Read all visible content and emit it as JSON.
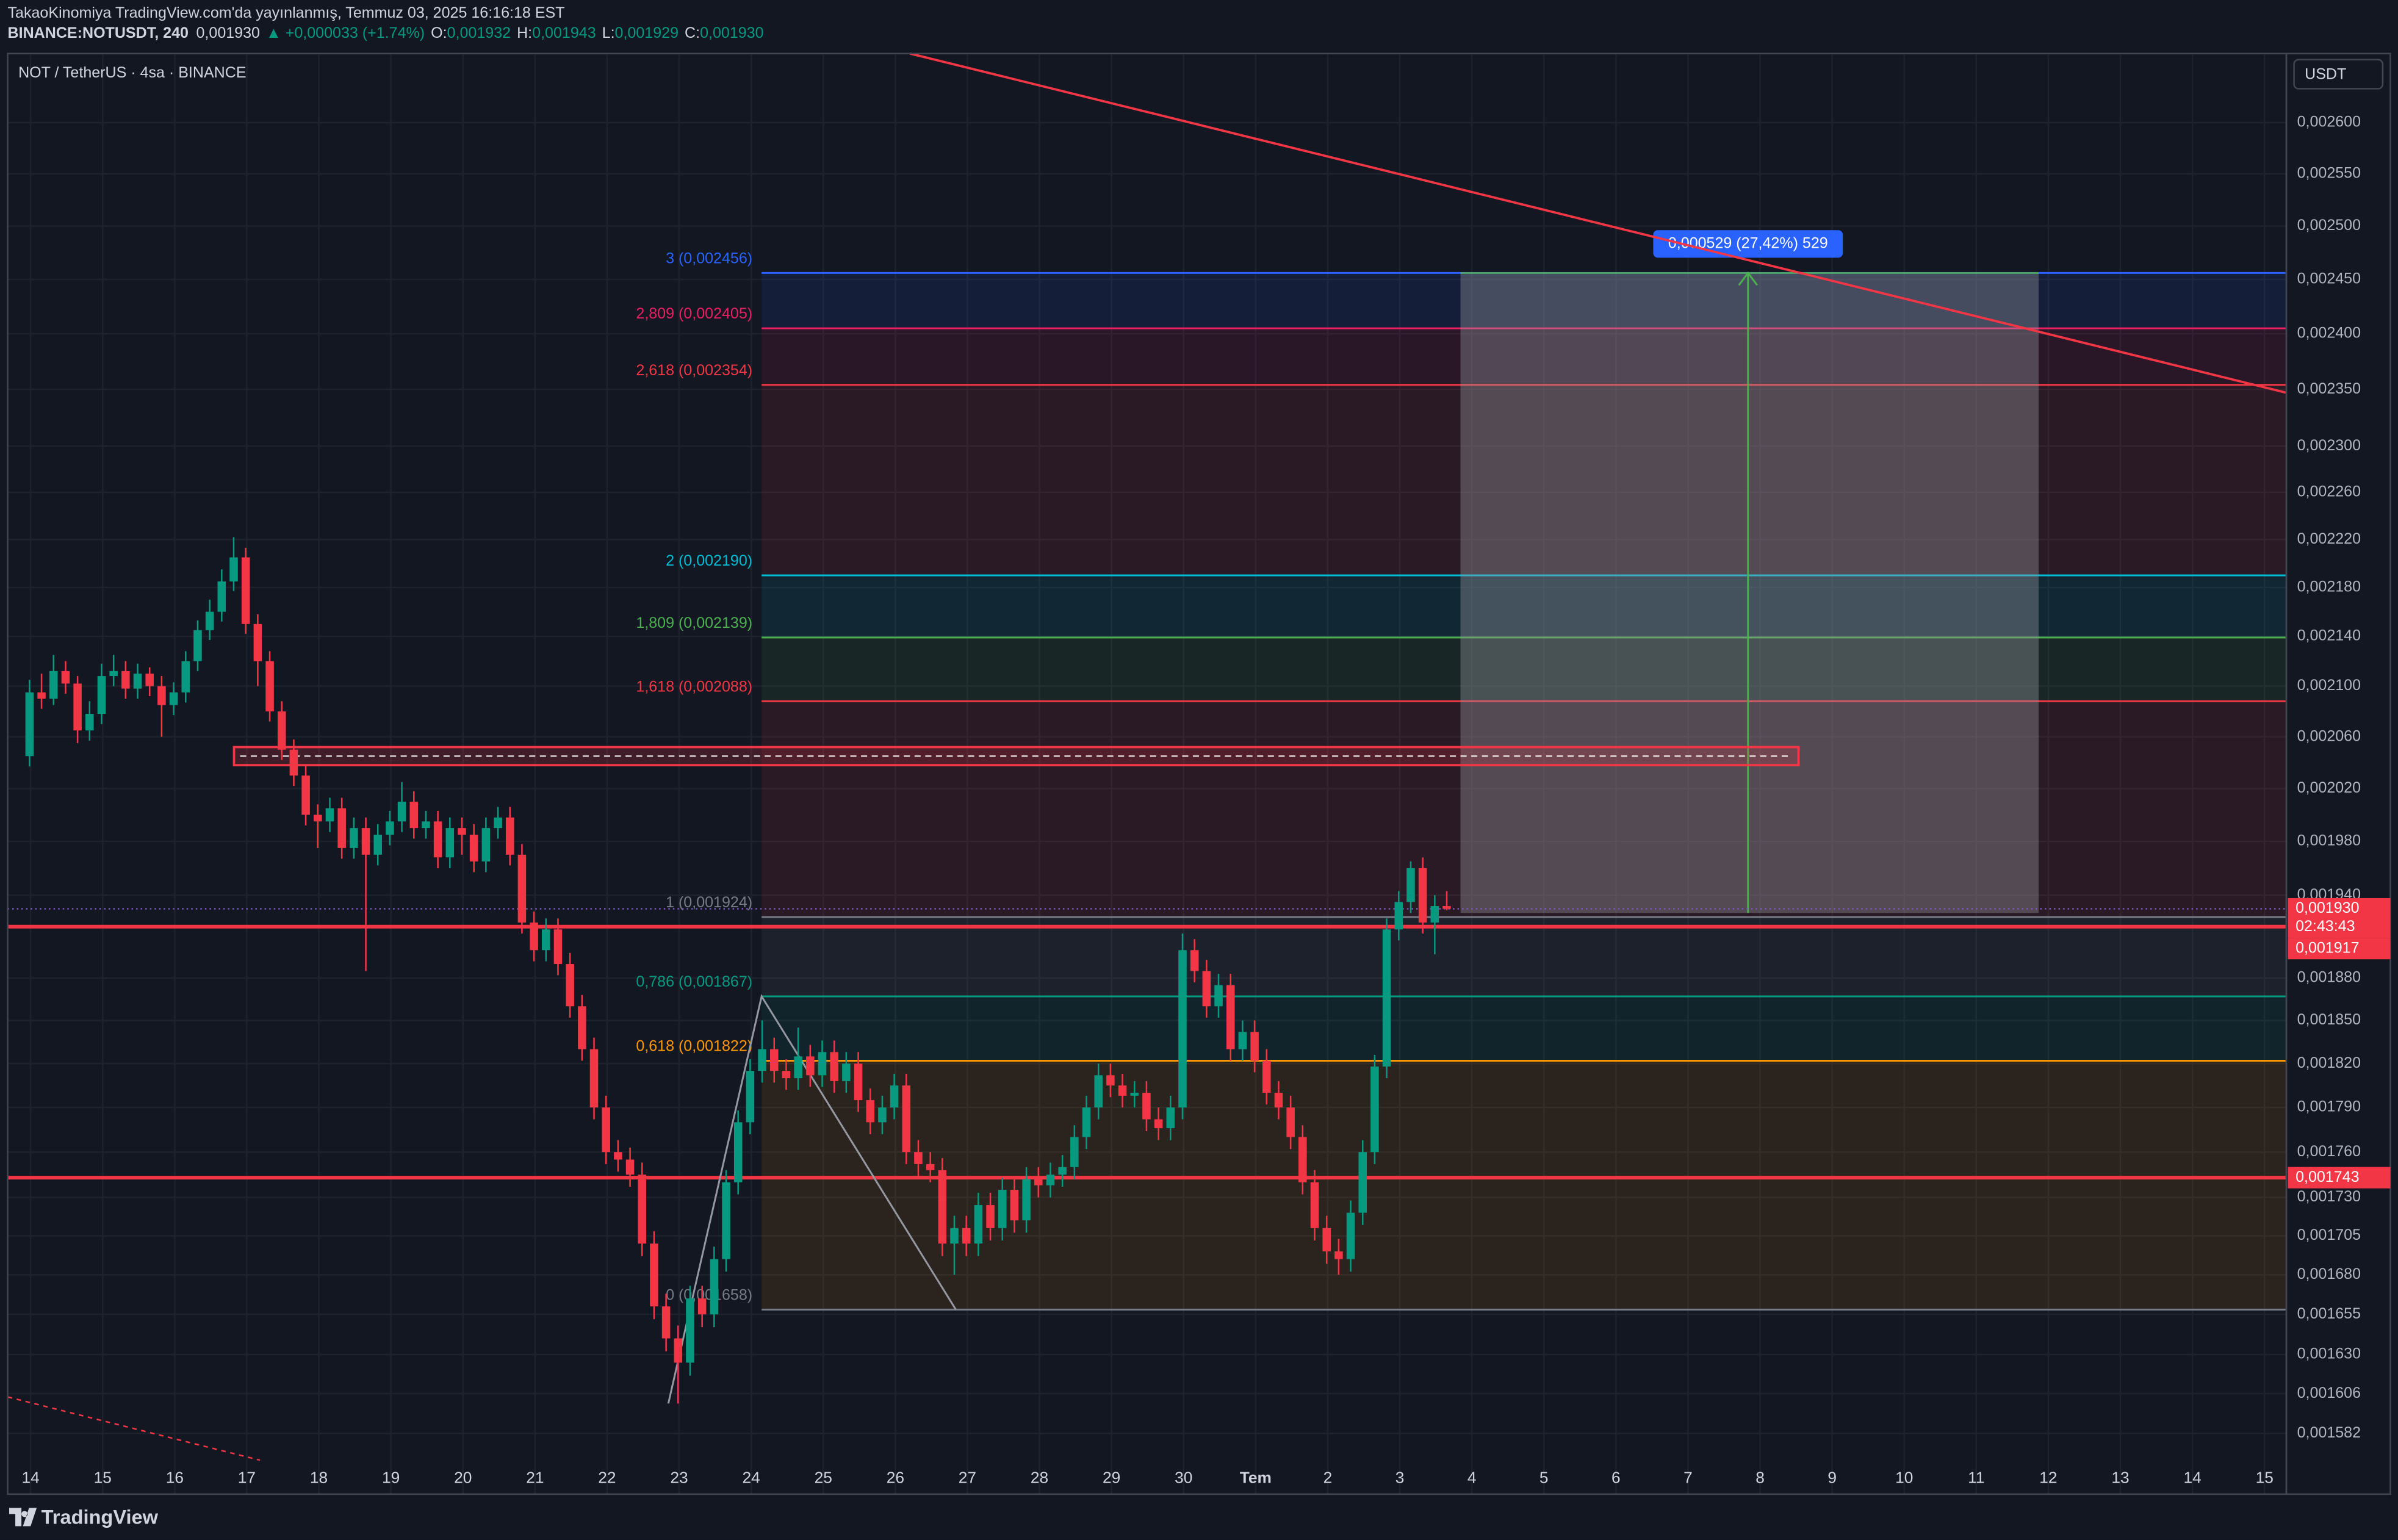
{
  "header": {
    "author_line": "TakaoKinomiya TradingView.com'da yayınlanmış, Temmuz 03, 2025 16:16:18 EST",
    "symbol": "BINANCE:NOTUSDT, 240",
    "last": "0,001930",
    "change": "▲ +0,000033 (+1.74%)",
    "ohlc": [
      {
        "key": "O:",
        "value": "0,001932"
      },
      {
        "key": "H:",
        "value": "0,001943"
      },
      {
        "key": "L:",
        "value": "0,001929"
      },
      {
        "key": "C:",
        "value": "0,001930"
      }
    ]
  },
  "legend": "NOT / TetherUS · 4sa · BINANCE",
  "currency": "USDT",
  "brand": "TradingView",
  "chart_data": {
    "type": "candlestick",
    "log_scale": true,
    "grid": true,
    "up_color": "#089981",
    "down_color": "#f23645",
    "ylim": [
      0.001546,
      0.002669
    ],
    "yticks": [
      {
        "value": 0.0026,
        "label": "0,002600"
      },
      {
        "value": 0.00255,
        "label": "0,002550"
      },
      {
        "value": 0.0025,
        "label": "0,002500"
      },
      {
        "value": 0.00245,
        "label": "0,002450"
      },
      {
        "value": 0.0024,
        "label": "0,002400"
      },
      {
        "value": 0.00235,
        "label": "0,002350"
      },
      {
        "value": 0.0023,
        "label": "0,002300"
      },
      {
        "value": 0.00226,
        "label": "0,002260"
      },
      {
        "value": 0.00222,
        "label": "0,002220"
      },
      {
        "value": 0.00218,
        "label": "0,002180"
      },
      {
        "value": 0.00214,
        "label": "0,002140"
      },
      {
        "value": 0.0021,
        "label": "0,002100"
      },
      {
        "value": 0.00206,
        "label": "0,002060"
      },
      {
        "value": 0.00202,
        "label": "0,002020"
      },
      {
        "value": 0.00198,
        "label": "0,001980"
      },
      {
        "value": 0.00194,
        "label": "0,001940"
      },
      {
        "value": 0.00188,
        "label": "0,001880"
      },
      {
        "value": 0.00185,
        "label": "0,001850"
      },
      {
        "value": 0.00182,
        "label": "0,001820"
      },
      {
        "value": 0.00179,
        "label": "0,001790"
      },
      {
        "value": 0.00176,
        "label": "0,001760"
      },
      {
        "value": 0.00173,
        "label": "0,001730"
      },
      {
        "value": 0.001705,
        "label": "0,001705"
      },
      {
        "value": 0.00168,
        "label": "0,001680"
      },
      {
        "value": 0.001655,
        "label": "0,001655"
      },
      {
        "value": 0.00163,
        "label": "0,001630"
      },
      {
        "value": 0.001606,
        "label": "0,001606"
      },
      {
        "value": 0.001582,
        "label": "0,001582"
      }
    ],
    "x_labels": [
      "14",
      "15",
      "16",
      "17",
      "18",
      "19",
      "20",
      "21",
      "22",
      "23",
      "24",
      "25",
      "26",
      "27",
      "28",
      "29",
      "30",
      "Tem",
      "2",
      "3",
      "4",
      "5",
      "6",
      "7",
      "8",
      "9",
      "10",
      "11",
      "12",
      "13",
      "14",
      "15"
    ],
    "candles": [
      [
        0.002045,
        0.002105,
        0.002037,
        0.002095
      ],
      [
        0.002095,
        0.00211,
        0.002082,
        0.00209
      ],
      [
        0.00209,
        0.002125,
        0.002085,
        0.002112
      ],
      [
        0.002112,
        0.00212,
        0.002094,
        0.002102
      ],
      [
        0.002102,
        0.002108,
        0.002055,
        0.002065
      ],
      [
        0.002065,
        0.002088,
        0.002057,
        0.002078
      ],
      [
        0.002078,
        0.002118,
        0.00207,
        0.002108
      ],
      [
        0.002108,
        0.002125,
        0.0021,
        0.002112
      ],
      [
        0.002112,
        0.00212,
        0.00209,
        0.002098
      ],
      [
        0.002098,
        0.002118,
        0.00209,
        0.00211
      ],
      [
        0.00211,
        0.002115,
        0.002092,
        0.0021
      ],
      [
        0.0021,
        0.002108,
        0.00206,
        0.002085
      ],
      [
        0.002085,
        0.002103,
        0.002077,
        0.002095
      ],
      [
        0.002095,
        0.002128,
        0.002087,
        0.00212
      ],
      [
        0.00212,
        0.002153,
        0.002112,
        0.002145
      ],
      [
        0.002145,
        0.00217,
        0.002137,
        0.00216
      ],
      [
        0.00216,
        0.002195,
        0.002152,
        0.002185
      ],
      [
        0.002185,
        0.002222,
        0.002177,
        0.002205
      ],
      [
        0.002205,
        0.002213,
        0.002142,
        0.00215
      ],
      [
        0.00215,
        0.002158,
        0.0021,
        0.00212
      ],
      [
        0.00212,
        0.002128,
        0.002072,
        0.00208
      ],
      [
        0.00208,
        0.002088,
        0.002042,
        0.00205
      ],
      [
        0.00205,
        0.002058,
        0.002022,
        0.00203
      ],
      [
        0.00203,
        0.002038,
        0.001992,
        0.002
      ],
      [
        0.002,
        0.002008,
        0.001975,
        0.001995
      ],
      [
        0.001995,
        0.002013,
        0.001987,
        0.002005
      ],
      [
        0.002005,
        0.002013,
        0.001967,
        0.001975
      ],
      [
        0.001975,
        0.001998,
        0.001967,
        0.00199
      ],
      [
        0.00199,
        0.001998,
        0.001885,
        0.00197
      ],
      [
        0.00197,
        0.001993,
        0.001962,
        0.001985
      ],
      [
        0.001985,
        0.002003,
        0.001977,
        0.001995
      ],
      [
        0.001995,
        0.002025,
        0.001987,
        0.00201
      ],
      [
        0.00201,
        0.002018,
        0.001982,
        0.00199
      ],
      [
        0.00199,
        0.002003,
        0.001982,
        0.001995
      ],
      [
        0.001995,
        0.002003,
        0.00196,
        0.001968
      ],
      [
        0.001968,
        0.001998,
        0.00196,
        0.00199
      ],
      [
        0.00199,
        0.001998,
        0.00197,
        0.001985
      ],
      [
        0.001985,
        0.001993,
        0.001957,
        0.001965
      ],
      [
        0.001965,
        0.001998,
        0.001957,
        0.00199
      ],
      [
        0.00199,
        0.002006,
        0.001982,
        0.001998
      ],
      [
        0.001998,
        0.002006,
        0.001962,
        0.00197
      ],
      [
        0.00197,
        0.001978,
        0.001912,
        0.00192
      ],
      [
        0.00192,
        0.001928,
        0.001892,
        0.0019
      ],
      [
        0.0019,
        0.001923,
        0.001892,
        0.001915
      ],
      [
        0.001915,
        0.001923,
        0.001882,
        0.00189
      ],
      [
        0.00189,
        0.001898,
        0.001852,
        0.00186
      ],
      [
        0.00186,
        0.001868,
        0.001822,
        0.00183
      ],
      [
        0.00183,
        0.001838,
        0.001782,
        0.00179
      ],
      [
        0.00179,
        0.001798,
        0.001752,
        0.00176
      ],
      [
        0.00176,
        0.001768,
        0.001747,
        0.001755
      ],
      [
        0.001755,
        0.001763,
        0.001737,
        0.001745
      ],
      [
        0.001745,
        0.001753,
        0.001692,
        0.0017
      ],
      [
        0.0017,
        0.001708,
        0.001652,
        0.00166
      ],
      [
        0.00166,
        0.001668,
        0.001632,
        0.00164
      ],
      [
        0.00164,
        0.001648,
        0.0016,
        0.001625
      ],
      [
        0.001625,
        0.001673,
        0.001617,
        0.001665
      ],
      [
        0.001665,
        0.001673,
        0.001647,
        0.001655
      ],
      [
        0.001655,
        0.001698,
        0.001647,
        0.00169
      ],
      [
        0.00169,
        0.001748,
        0.001682,
        0.00174
      ],
      [
        0.00174,
        0.001788,
        0.001732,
        0.00178
      ],
      [
        0.00178,
        0.001823,
        0.001772,
        0.001815
      ],
      [
        0.001815,
        0.00185,
        0.001807,
        0.00183
      ],
      [
        0.00183,
        0.001838,
        0.001807,
        0.001815
      ],
      [
        0.001815,
        0.001823,
        0.001802,
        0.00181
      ],
      [
        0.00181,
        0.001845,
        0.001802,
        0.001825
      ],
      [
        0.001825,
        0.001833,
        0.001804,
        0.001812
      ],
      [
        0.001812,
        0.001836,
        0.001804,
        0.001828
      ],
      [
        0.001828,
        0.001836,
        0.0018,
        0.001808
      ],
      [
        0.001808,
        0.001828,
        0.0018,
        0.00182
      ],
      [
        0.00182,
        0.001828,
        0.001787,
        0.001795
      ],
      [
        0.001795,
        0.001803,
        0.001772,
        0.00178
      ],
      [
        0.00178,
        0.001798,
        0.001772,
        0.00179
      ],
      [
        0.00179,
        0.001813,
        0.001782,
        0.001805
      ],
      [
        0.001805,
        0.001813,
        0.001752,
        0.00176
      ],
      [
        0.00176,
        0.001768,
        0.001744,
        0.001752
      ],
      [
        0.001752,
        0.00176,
        0.00174,
        0.001748
      ],
      [
        0.001748,
        0.001756,
        0.001692,
        0.0017
      ],
      [
        0.0017,
        0.001718,
        0.00168,
        0.00171
      ],
      [
        0.00171,
        0.001718,
        0.001692,
        0.0017
      ],
      [
        0.0017,
        0.001733,
        0.001692,
        0.001725
      ],
      [
        0.001725,
        0.001733,
        0.001702,
        0.00171
      ],
      [
        0.00171,
        0.001743,
        0.001702,
        0.001735
      ],
      [
        0.001735,
        0.001743,
        0.001707,
        0.001715
      ],
      [
        0.001715,
        0.00175,
        0.001707,
        0.001742
      ],
      [
        0.001742,
        0.00175,
        0.00173,
        0.001738
      ],
      [
        0.001738,
        0.001753,
        0.00173,
        0.001745
      ],
      [
        0.001745,
        0.001758,
        0.001737,
        0.00175
      ],
      [
        0.00175,
        0.001778,
        0.001742,
        0.00177
      ],
      [
        0.00177,
        0.001798,
        0.001762,
        0.00179
      ],
      [
        0.00179,
        0.00182,
        0.001782,
        0.001812
      ],
      [
        0.001812,
        0.00182,
        0.001797,
        0.001805
      ],
      [
        0.001805,
        0.001813,
        0.00179,
        0.001798
      ],
      [
        0.001798,
        0.001808,
        0.00179,
        0.0018
      ],
      [
        0.0018,
        0.001808,
        0.001774,
        0.001782
      ],
      [
        0.001782,
        0.00179,
        0.001768,
        0.001776
      ],
      [
        0.001776,
        0.001798,
        0.001768,
        0.00179
      ],
      [
        0.00179,
        0.001912,
        0.001782,
        0.0019
      ],
      [
        0.0019,
        0.001908,
        0.001877,
        0.001885
      ],
      [
        0.001885,
        0.001893,
        0.001852,
        0.00186
      ],
      [
        0.00186,
        0.001883,
        0.001852,
        0.001875
      ],
      [
        0.001875,
        0.001883,
        0.001822,
        0.00183
      ],
      [
        0.00183,
        0.00185,
        0.001822,
        0.001842
      ],
      [
        0.001842,
        0.00185,
        0.001814,
        0.001822
      ],
      [
        0.001822,
        0.00183,
        0.001792,
        0.0018
      ],
      [
        0.0018,
        0.001808,
        0.001782,
        0.00179
      ],
      [
        0.00179,
        0.001798,
        0.001762,
        0.00177
      ],
      [
        0.00177,
        0.001778,
        0.001732,
        0.00174
      ],
      [
        0.00174,
        0.001748,
        0.001702,
        0.00171
      ],
      [
        0.00171,
        0.001718,
        0.001687,
        0.001695
      ],
      [
        0.001695,
        0.001703,
        0.00168,
        0.00169
      ],
      [
        0.00169,
        0.001728,
        0.001682,
        0.00172
      ],
      [
        0.00172,
        0.001768,
        0.001712,
        0.00176
      ],
      [
        0.00176,
        0.001826,
        0.001752,
        0.001818
      ],
      [
        0.001818,
        0.001923,
        0.00181,
        0.001915
      ],
      [
        0.001915,
        0.001943,
        0.001907,
        0.001935
      ],
      [
        0.001935,
        0.001965,
        0.001927,
        0.00196
      ],
      [
        0.00196,
        0.001968,
        0.001912,
        0.00192
      ],
      [
        0.00192,
        0.00194,
        0.001897,
        0.001932
      ],
      [
        0.001932,
        0.001943,
        0.001929,
        0.00193
      ]
    ]
  },
  "fib": [
    {
      "label": "3 (0,002456)",
      "value": 0.002456,
      "color": "#2962ff"
    },
    {
      "label": "2,809 (0,002405)",
      "value": 0.002405,
      "color": "#e91e63"
    },
    {
      "label": "2,618 (0,002354)",
      "value": 0.002354,
      "color": "#f23645"
    },
    {
      "label": "2 (0,002190)",
      "value": 0.00219,
      "color": "#00bcd4"
    },
    {
      "label": "1,809 (0,002139)",
      "value": 0.002139,
      "color": "#4caf50"
    },
    {
      "label": "1,618 (0,002088)",
      "value": 0.002088,
      "color": "#f23645"
    },
    {
      "label": "1 (0,001924)",
      "value": 0.001924,
      "color": "#787b86"
    },
    {
      "label": "0,786 (0,001867)",
      "value": 0.001867,
      "color": "#089981"
    },
    {
      "label": "0,618 (0,001822)",
      "value": 0.001822,
      "color": "#ff9800"
    },
    {
      "label": "0 (0,001658)",
      "value": 0.001658,
      "color": "#787b86"
    }
  ],
  "lines": [
    {
      "value": 0.001917,
      "label": "0,001917",
      "color": "#f23645"
    },
    {
      "value": 0.001743,
      "label": "0,001743",
      "color": "#f23645"
    }
  ],
  "last_price": {
    "value": 0.00193,
    "label": "0,001930",
    "countdown": "02:43:43",
    "color": "#f23645"
  },
  "measure": {
    "from": 0.001927,
    "to": 0.002456,
    "label": "0,000529 (27,42%) 529"
  },
  "zone": {
    "top": 0.002052,
    "bottom": 0.002038
  },
  "trend": [
    0.002669,
    0.002347
  ],
  "trend2": [
    0.001604,
    0.001566
  ],
  "zigzag": [
    0.0016,
    0.001867,
    0.001658
  ]
}
